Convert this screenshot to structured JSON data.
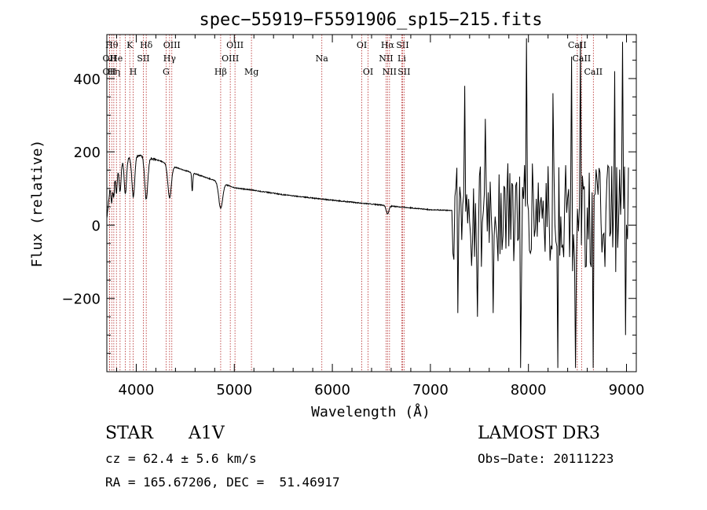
{
  "chart_data": {
    "type": "line",
    "title": "spec−55919−F5591906_sp15−215.fits",
    "xlabel": "Wavelength (Å)",
    "ylabel": "Flux (relative)",
    "xlim": [
      3700,
      9100
    ],
    "ylim": [
      -400,
      520
    ],
    "xticks": [
      4000,
      5000,
      6000,
      7000,
      8000,
      9000
    ],
    "xtick_labels": [
      "4000",
      "5000",
      "6000",
      "7000",
      "8000",
      "9000"
    ],
    "yticks": [
      -200,
      0,
      200,
      400
    ],
    "ytick_labels": [
      "−200",
      "0",
      "200",
      "400"
    ],
    "grid": false,
    "continuum": [
      [
        3700,
        20
      ],
      [
        3730,
        95
      ],
      [
        3780,
        150
      ],
      [
        3830,
        170
      ],
      [
        3880,
        178
      ],
      [
        3950,
        185
      ],
      [
        4000,
        190
      ],
      [
        4050,
        190
      ],
      [
        4150,
        182
      ],
      [
        4250,
        175
      ],
      [
        4400,
        158
      ],
      [
        4600,
        140
      ],
      [
        4800,
        122
      ],
      [
        5000,
        102
      ],
      [
        5200,
        95
      ],
      [
        5500,
        83
      ],
      [
        6000,
        68
      ],
      [
        6300,
        60
      ],
      [
        6600,
        52
      ],
      [
        7000,
        42
      ],
      [
        7200,
        40
      ]
    ],
    "absorption_lines": [
      {
        "center": 3750,
        "depth": 55,
        "width": 10
      },
      {
        "center": 3771,
        "depth": 62,
        "width": 10
      },
      {
        "center": 3798,
        "depth": 70,
        "width": 12
      },
      {
        "center": 3835,
        "depth": 80,
        "width": 14
      },
      {
        "center": 3889,
        "depth": 95,
        "width": 16
      },
      {
        "center": 3970,
        "depth": 110,
        "width": 20
      },
      {
        "center": 4102,
        "depth": 115,
        "width": 22
      },
      {
        "center": 4340,
        "depth": 90,
        "width": 25
      },
      {
        "center": 4571,
        "depth": 50,
        "width": 8
      },
      {
        "center": 4861,
        "depth": 70,
        "width": 28
      },
      {
        "center": 6563,
        "depth": 22,
        "width": 20
      }
    ],
    "noisy_region": {
      "x_start": 7220,
      "x_end": 9020,
      "step": 10,
      "amplitude": 150,
      "spikes": [
        {
          "x": 7280,
          "y": -240
        },
        {
          "x": 7350,
          "y": 380
        },
        {
          "x": 7480,
          "y": -250
        },
        {
          "x": 7560,
          "y": 290
        },
        {
          "x": 7640,
          "y": -240
        },
        {
          "x": 7920,
          "y": -390
        },
        {
          "x": 7980,
          "y": 510
        },
        {
          "x": 8250,
          "y": 360
        },
        {
          "x": 8300,
          "y": -390
        },
        {
          "x": 8440,
          "y": 460
        },
        {
          "x": 8480,
          "y": -390
        },
        {
          "x": 8530,
          "y": 500
        },
        {
          "x": 8660,
          "y": -390
        },
        {
          "x": 8880,
          "y": 420
        },
        {
          "x": 8960,
          "y": 500
        },
        {
          "x": 8990,
          "y": -300
        }
      ]
    },
    "line_markers": [
      {
        "x": 3750,
        "label": "Hθ",
        "row": 0
      },
      {
        "x": 3727,
        "label": "OII",
        "row": 1
      },
      {
        "x": 3727,
        "label": "OII",
        "row": 2
      },
      {
        "x": 3771,
        "label": "Hη",
        "row": 2
      },
      {
        "x": 3798,
        "label": "He",
        "row": 1
      },
      {
        "x": 3835,
        "label": "",
        "row": -1
      },
      {
        "x": 3889,
        "label": "",
        "row": -1
      },
      {
        "x": 3934,
        "label": "K",
        "row": 0
      },
      {
        "x": 3969,
        "label": "H",
        "row": 2
      },
      {
        "x": 4072,
        "label": "SII",
        "row": 1
      },
      {
        "x": 4102,
        "label": "Hδ",
        "row": 0
      },
      {
        "x": 4304,
        "label": "G",
        "row": 2
      },
      {
        "x": 4340,
        "label": "Hγ",
        "row": 1
      },
      {
        "x": 4363,
        "label": "OIII",
        "row": 0
      },
      {
        "x": 4861,
        "label": "Hβ",
        "row": 2
      },
      {
        "x": 4959,
        "label": "OIII",
        "row": 1
      },
      {
        "x": 5007,
        "label": "OIII",
        "row": 0
      },
      {
        "x": 5175,
        "label": "Mg",
        "row": 2
      },
      {
        "x": 5893,
        "label": "Na",
        "row": 1
      },
      {
        "x": 6300,
        "label": "OI",
        "row": 0
      },
      {
        "x": 6364,
        "label": "OI",
        "row": 2
      },
      {
        "x": 6548,
        "label": "NII",
        "row": 1
      },
      {
        "x": 6563,
        "label": "Hα",
        "row": 0
      },
      {
        "x": 6583,
        "label": "NII",
        "row": 2
      },
      {
        "x": 6708,
        "label": "Li",
        "row": 1
      },
      {
        "x": 6716,
        "label": "SII",
        "row": 0
      },
      {
        "x": 6731,
        "label": "SII",
        "row": 2
      },
      {
        "x": 8498,
        "label": "CaII",
        "row": 0
      },
      {
        "x": 8542,
        "label": "CaII",
        "row": 1
      },
      {
        "x": 8662,
        "label": "CaII",
        "row": 2
      }
    ]
  },
  "info": {
    "class": "STAR",
    "subclass": "A1V",
    "survey": "LAMOST DR3",
    "cz": "cz = 62.4 ± 5.6 km/s",
    "obs_date": "Obs−Date: 20111223",
    "coords": "RA = 165.67206, DEC =  51.46917"
  },
  "colors": {
    "axis": "#000000",
    "spectrum": "#000000",
    "marker": "#b22222"
  }
}
